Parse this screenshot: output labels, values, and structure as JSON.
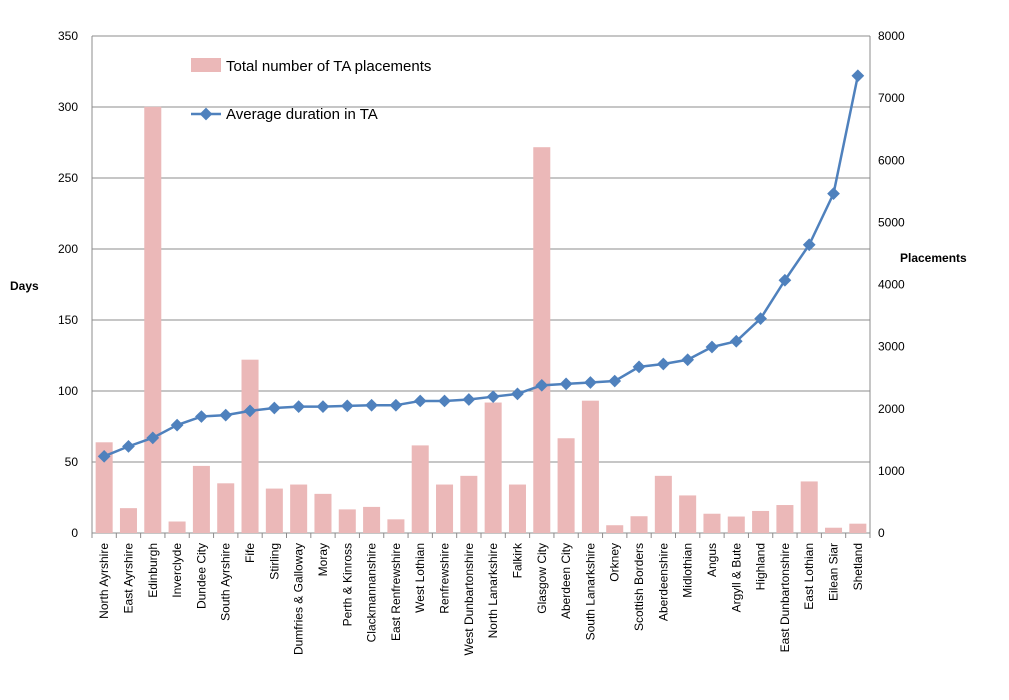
{
  "chart_data": {
    "type": "bar+line",
    "title": "",
    "categories": [
      "North Ayrshire",
      "East Ayrshire",
      "Edinburgh",
      "Inverclyde",
      "Dundee City",
      "South Ayrshire",
      "Fife",
      "Stirling",
      "Dumfries & Galloway",
      "Moray",
      "Perth & Kinross",
      "Clackmannanshire",
      "East Renfrewshire",
      "West Lothian",
      "Renfrewshire",
      "West Dunbartonshire",
      "North Lanarkshire",
      "Falkirk",
      "Glasgow City",
      "Aberdeen City",
      "South Lanarkshire",
      "Orkney",
      "Scottish Borders",
      "Aberdeenshire",
      "Midlothian",
      "Angus",
      "Argyll & Bute",
      "Highland",
      "East Dunbartonshire",
      "East Lothian",
      "Eilean Siar",
      "Shetland"
    ],
    "y_left": {
      "label": "Days",
      "range": [
        0,
        350
      ],
      "ticks": [
        "0",
        "50",
        "100",
        "150",
        "200",
        "250",
        "300",
        "350"
      ]
    },
    "y_right": {
      "label": "Placements",
      "range": [
        0,
        8000
      ],
      "ticks": [
        "0",
        "1000",
        "2000",
        "3000",
        "4000",
        "5000",
        "6000",
        "7000",
        "8000"
      ]
    },
    "grid": true,
    "legend_position": "top-left",
    "series": [
      {
        "name": "Total number of TA placements",
        "type": "bar",
        "axis": "right",
        "color": "#ebb8b8",
        "values": [
          1460,
          400,
          6860,
          185,
          1080,
          800,
          2790,
          715,
          780,
          630,
          380,
          420,
          220,
          1410,
          780,
          920,
          2100,
          780,
          6210,
          1525,
          2130,
          125,
          270,
          920,
          605,
          310,
          265,
          355,
          450,
          830,
          85,
          150
        ]
      },
      {
        "name": "Average duration in TA",
        "type": "line",
        "axis": "left",
        "color": "#4f81bd",
        "values": [
          54,
          61,
          67,
          76,
          82,
          83,
          86,
          88,
          89,
          89,
          89.5,
          90,
          90,
          93,
          93,
          94,
          96,
          98,
          104,
          105,
          106,
          107,
          117,
          119,
          122,
          131,
          135,
          151,
          178,
          203,
          239,
          322
        ]
      }
    ]
  }
}
